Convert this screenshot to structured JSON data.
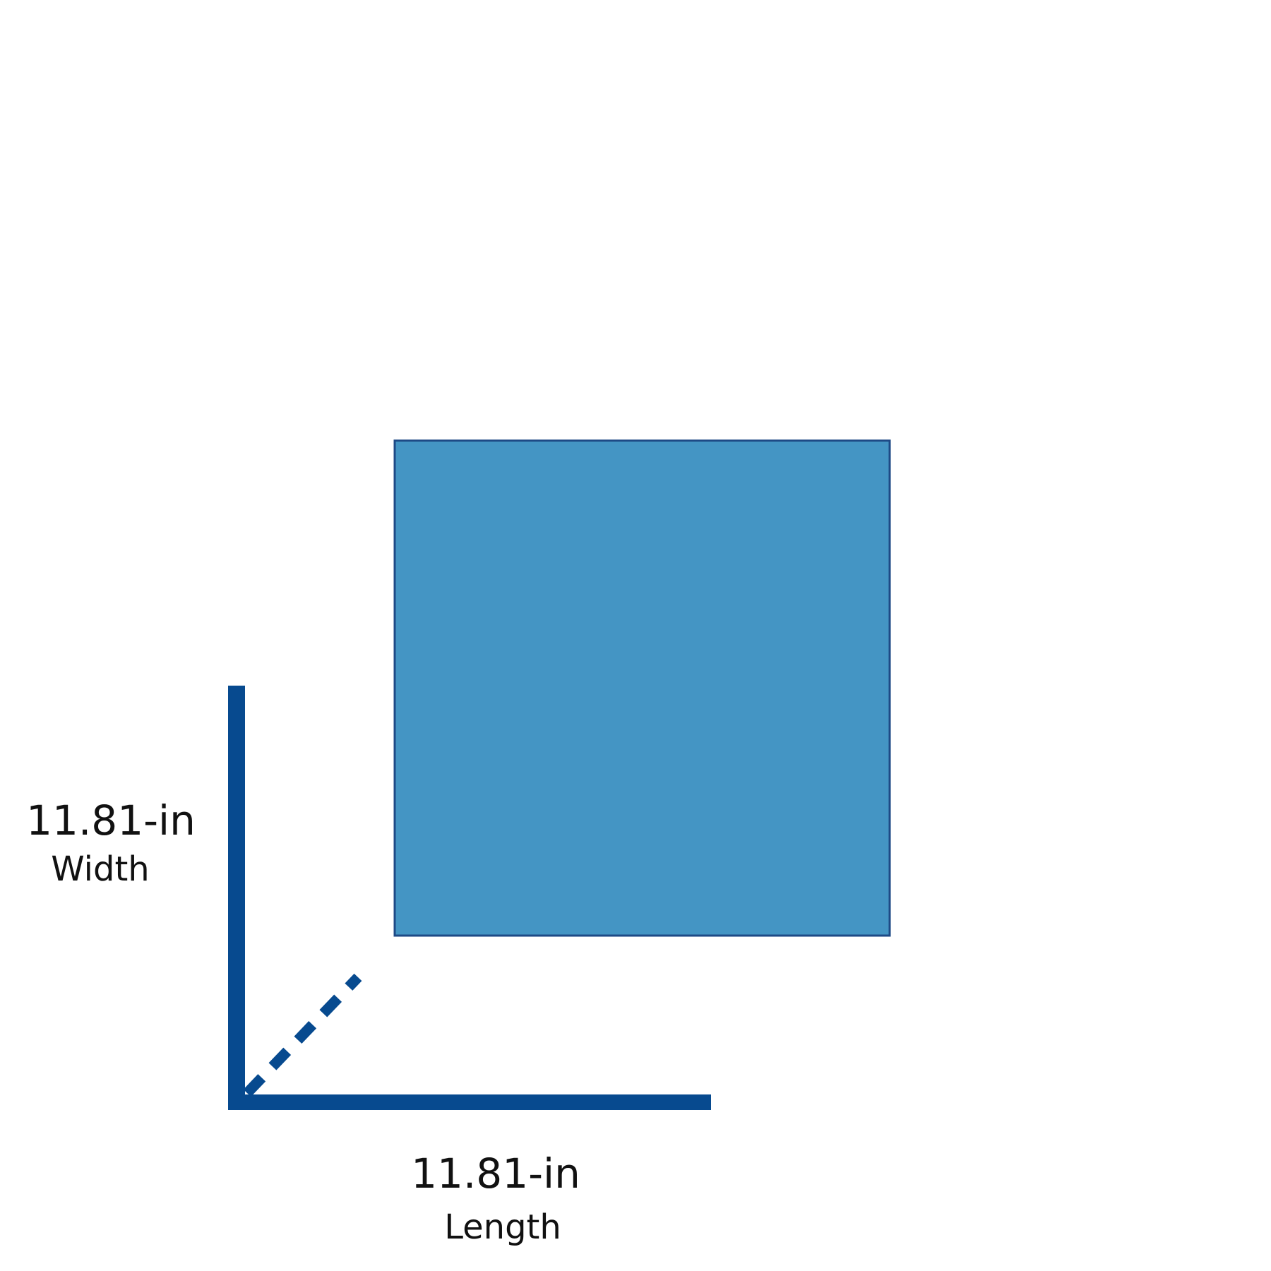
{
  "colors": {
    "panel_fill": "#4495c4",
    "panel_stroke": "#1e4a86",
    "axis": "#074a8f"
  },
  "width": {
    "value": "11.81-in",
    "label": "Width"
  },
  "length": {
    "value": "11.81-in",
    "label": "Length"
  }
}
